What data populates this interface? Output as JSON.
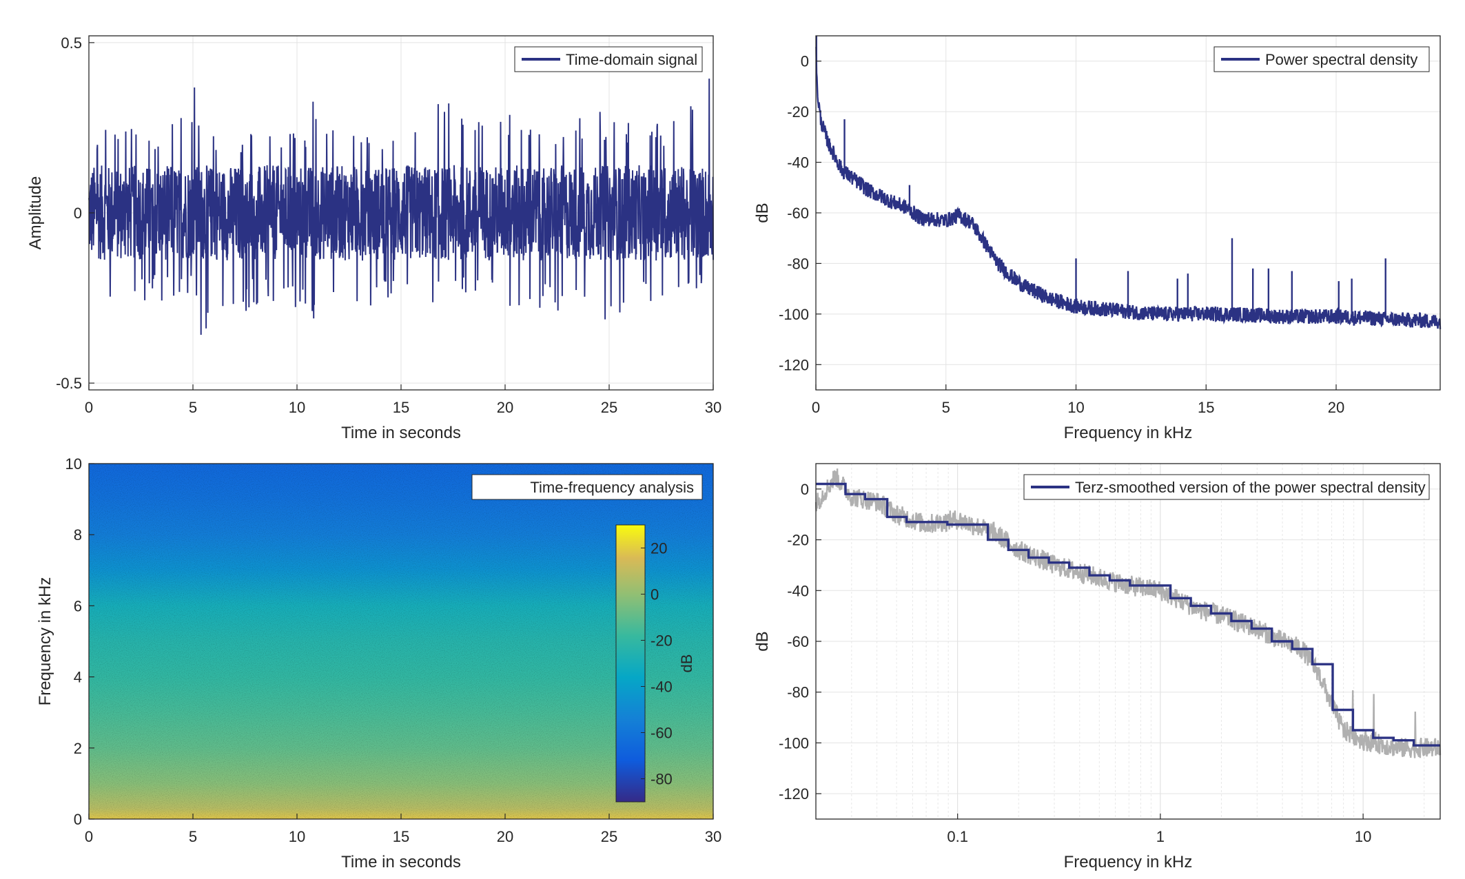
{
  "chart_data": [
    {
      "type": "line",
      "title": "",
      "xlabel": "Time in seconds",
      "ylabel": "Amplitude",
      "xlim": [
        0,
        30
      ],
      "ylim": [
        -0.52,
        0.52
      ],
      "xticks": [
        0,
        5,
        10,
        15,
        20,
        25,
        30
      ],
      "yticks": [
        -0.5,
        0,
        0.5
      ],
      "ytick_labels": [
        "-0.5",
        "0",
        "0.5"
      ],
      "grid": true,
      "legend_position": "top-right",
      "series": [
        {
          "name": "Time-domain signal",
          "color": "#2b3283",
          "envelope": {
            "x": [
              0,
              0.6,
              3,
              5.2,
              5.4,
              8,
              10.5,
              11,
              11.2,
              14,
              17.5,
              22,
              25,
              28,
              29.8,
              30
            ],
            "max": [
              0.18,
              0.29,
              0.22,
              0.39,
              0.22,
              0.25,
              0.24,
              0.42,
              0.25,
              0.26,
              0.34,
              0.28,
              0.3,
              0.27,
              0.41,
              0.25
            ],
            "min": [
              -0.15,
              -0.31,
              -0.26,
              -0.25,
              -0.39,
              -0.27,
              -0.28,
              -0.34,
              -0.29,
              -0.27,
              -0.27,
              -0.28,
              -0.32,
              -0.25,
              -0.24,
              -0.23
            ]
          }
        }
      ]
    },
    {
      "type": "line",
      "title": "",
      "xlabel": "Frequency in kHz",
      "ylabel": "dB",
      "xlim": [
        0,
        24
      ],
      "ylim": [
        -130,
        10
      ],
      "xticks": [
        0,
        5,
        10,
        15,
        20
      ],
      "yticks": [
        0,
        -20,
        -40,
        -60,
        -80,
        -100,
        -120
      ],
      "grid": true,
      "legend_position": "top-right",
      "series": [
        {
          "name": "Power spectral density",
          "color": "#2b3283",
          "x": [
            0,
            0.05,
            0.2,
            0.5,
            1,
            1.5,
            2,
            3,
            3.5,
            4,
            5,
            5.5,
            6,
            6.5,
            7,
            7.5,
            8,
            9,
            10,
            11,
            12,
            13,
            14,
            16,
            18,
            20,
            22,
            24
          ],
          "y": [
            8,
            -12,
            -24,
            -33,
            -43,
            -47,
            -51,
            -56,
            -58,
            -62,
            -63,
            -61,
            -64,
            -72,
            -80,
            -85,
            -89,
            -94,
            -97,
            -98,
            -99,
            -100,
            -100,
            -100,
            -101,
            -101,
            -102,
            -103
          ],
          "peaks": [
            {
              "x": 0.02,
              "y": 10
            },
            {
              "x": 1.1,
              "y": -23
            },
            {
              "x": 3.6,
              "y": -49
            },
            {
              "x": 10.0,
              "y": -78
            },
            {
              "x": 12.0,
              "y": -83
            },
            {
              "x": 13.9,
              "y": -86
            },
            {
              "x": 14.3,
              "y": -84
            },
            {
              "x": 16.0,
              "y": -70
            },
            {
              "x": 16.8,
              "y": -82
            },
            {
              "x": 17.4,
              "y": -82
            },
            {
              "x": 18.3,
              "y": -83
            },
            {
              "x": 20.1,
              "y": -87
            },
            {
              "x": 20.6,
              "y": -86
            },
            {
              "x": 21.9,
              "y": -78
            }
          ]
        }
      ]
    },
    {
      "type": "heatmap",
      "title": "",
      "xlabel": "Time in seconds",
      "ylabel": "Frequency in kHz",
      "xlim": [
        0,
        30
      ],
      "ylim": [
        0,
        10
      ],
      "xticks": [
        0,
        5,
        10,
        15,
        20,
        25,
        30
      ],
      "yticks": [
        0,
        2,
        4,
        6,
        8,
        10
      ],
      "legend_position": "top-right",
      "legend": "Time-frequency analysis",
      "profile": {
        "freq_khz": [
          0,
          0.3,
          1,
          2,
          3,
          4,
          5,
          6,
          7,
          8,
          9,
          10
        ],
        "level_db": [
          18,
          8,
          -2,
          -10,
          -15,
          -20,
          -24,
          -30,
          -46,
          -56,
          -62,
          -66
        ]
      },
      "colorbar": {
        "label": "dB",
        "range": [
          -90,
          30
        ],
        "ticks": [
          20,
          0,
          -20,
          -40,
          -60,
          -80
        ]
      }
    },
    {
      "type": "line",
      "title": "",
      "xlabel": "Frequency in kHz",
      "ylabel": "dB",
      "xscale": "log",
      "xlim": [
        0.02,
        24
      ],
      "ylim": [
        -130,
        10
      ],
      "xticks": [
        0.1,
        1,
        10
      ],
      "yticks": [
        0,
        -20,
        -40,
        -60,
        -80,
        -100,
        -120
      ],
      "grid": true,
      "legend_position": "top-right",
      "series": [
        {
          "name": "",
          "color": "#b0b0b0",
          "x": [
            0.02,
            0.025,
            0.03,
            0.04,
            0.05,
            0.07,
            0.1,
            0.15,
            0.2,
            0.3,
            0.5,
            0.7,
            1,
            1.5,
            2,
            3,
            4,
            5,
            6,
            7,
            8,
            10,
            15,
            24
          ],
          "y": [
            -6,
            5,
            -3,
            -5,
            -10,
            -14,
            -12,
            -17,
            -24,
            -30,
            -35,
            -38,
            -40,
            -47,
            -50,
            -55,
            -60,
            -63,
            -72,
            -85,
            -95,
            -99,
            -102,
            -102
          ]
        },
        {
          "name": "Terz-smoothed version of the power spectral density",
          "color": "#2b3283",
          "step_edges": [
            0.02,
            0.028,
            0.035,
            0.045,
            0.056,
            0.071,
            0.089,
            0.112,
            0.141,
            0.178,
            0.224,
            0.282,
            0.355,
            0.447,
            0.562,
            0.708,
            0.891,
            1.122,
            1.413,
            1.778,
            2.239,
            2.818,
            3.548,
            4.467,
            5.623,
            7.079,
            8.913,
            11.22,
            14.13,
            17.78,
            24
          ],
          "step_values": [
            2,
            -2,
            -4,
            -11,
            -13,
            -13,
            -14,
            -14,
            -20,
            -24,
            -27,
            -29,
            -31,
            -34,
            -36,
            -38,
            -38,
            -43,
            -46,
            -49,
            -52,
            -55,
            -60,
            -63,
            -69,
            -87,
            -95,
            -98,
            -99,
            -101
          ]
        }
      ]
    }
  ]
}
